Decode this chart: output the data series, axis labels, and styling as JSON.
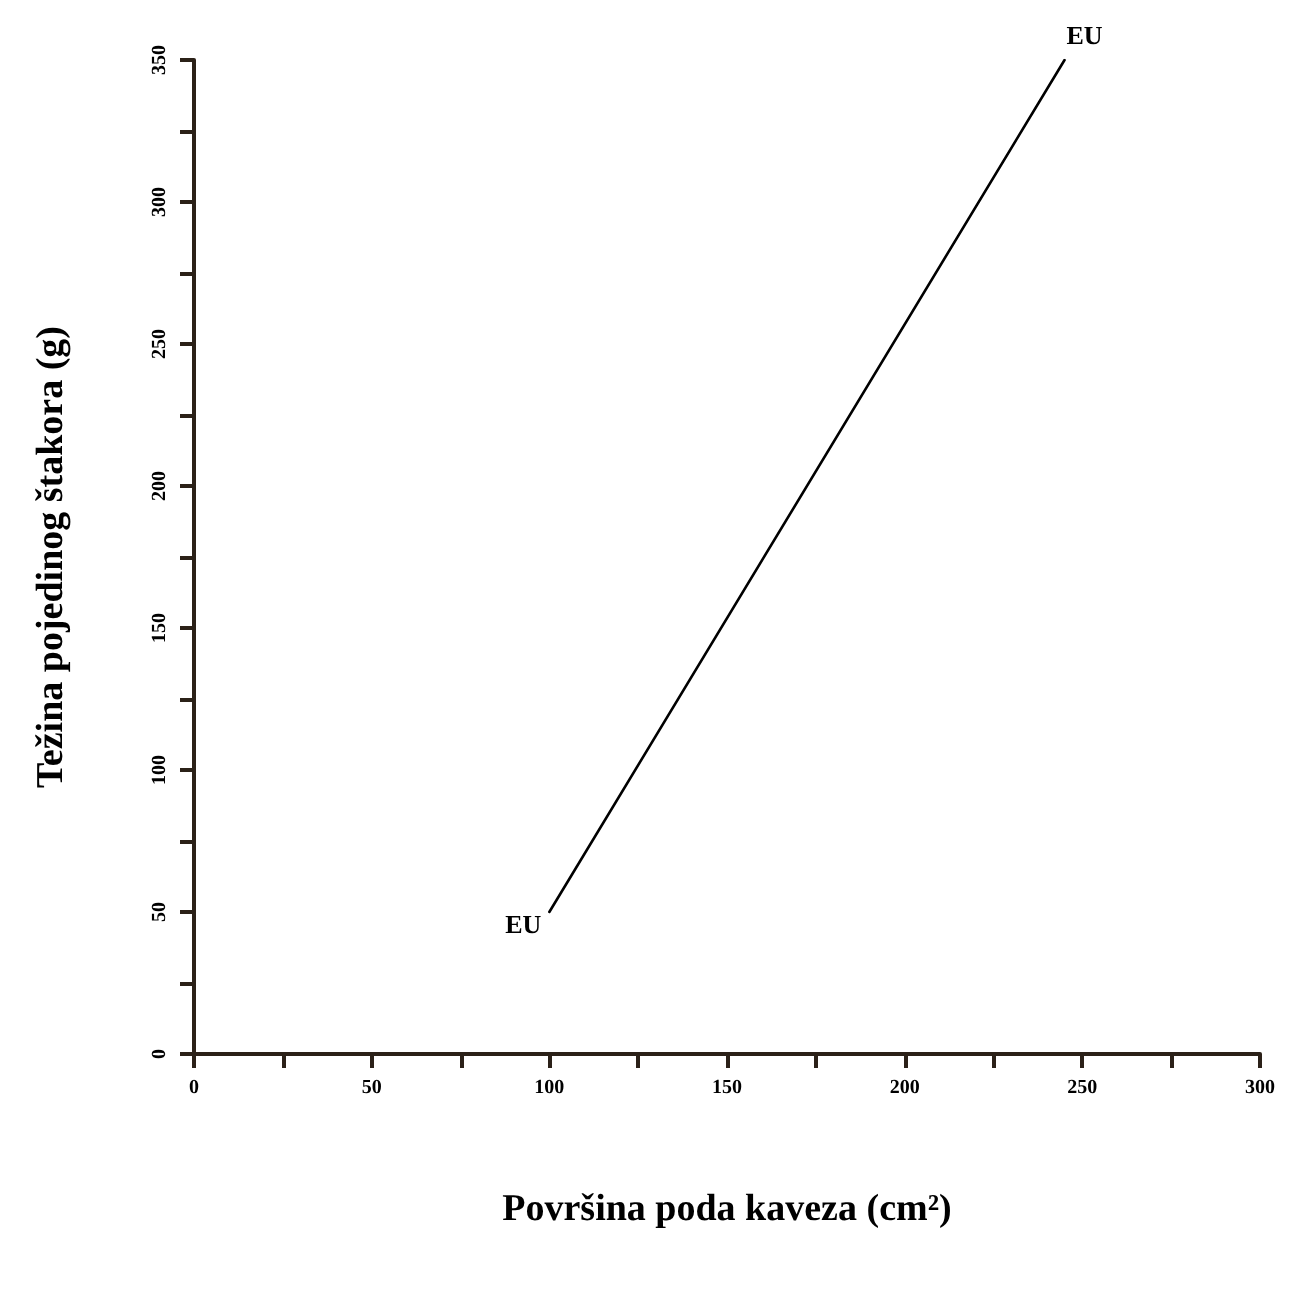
{
  "chart_data": {
    "type": "line",
    "xlabel": "Površina poda kaveza (cm²)",
    "ylabel": "Težina pojedinog štakora (g)",
    "x": [
      100,
      245
    ],
    "series": [
      {
        "color": "#000000",
        "values": [
          50,
          350
        ]
      }
    ],
    "xlim": [
      0,
      300
    ],
    "ylim": [
      0,
      350
    ],
    "xticks": [
      0,
      {
        "value": 25,
        "label": null
      },
      50,
      {
        "value": 75,
        "label": null
      },
      100,
      {
        "value": 125,
        "label": null
      },
      150,
      {
        "value": 175,
        "label": null
      },
      200,
      {
        "value": 225,
        "label": null
      },
      250,
      {
        "value": 275,
        "label": null
      },
      300
    ],
    "yticks": [
      0,
      {
        "value": 25,
        "label": null
      },
      50,
      {
        "value": 75,
        "label": null
      },
      100,
      {
        "value": 125,
        "label": null
      },
      150,
      {
        "value": 175,
        "label": null
      },
      200,
      {
        "value": 225,
        "label": null
      },
      250,
      {
        "value": 275,
        "label": null
      },
      300,
      {
        "value": 325,
        "label": null
      },
      350
    ],
    "annotations": [
      {
        "text": "EU",
        "x": 100,
        "y": 50
      },
      {
        "text": "EU",
        "x": 245,
        "y": 350
      }
    ],
    "grid": false,
    "marker": "none",
    "line_style": "solid"
  }
}
